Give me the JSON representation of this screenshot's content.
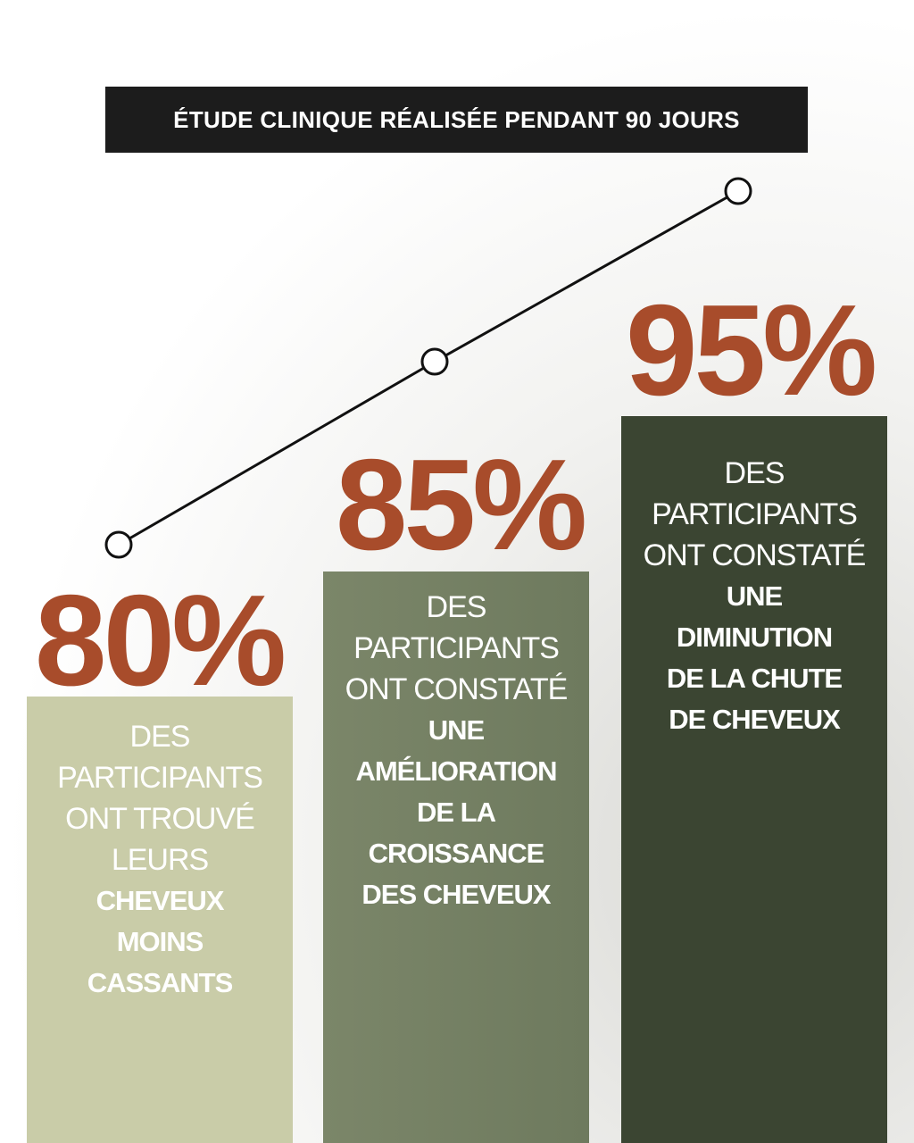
{
  "header": {
    "title": "ÉTUDE CLINIQUE RÉALISÉE PENDANT 90 JOURS"
  },
  "columns": [
    {
      "percent": "80%",
      "light_lines": [
        "DES",
        "PARTICIPANTS",
        "ONT TROUVÉ",
        "LEURS"
      ],
      "bold_lines": [
        "CHEVEUX",
        "MOINS",
        "CASSANTS"
      ]
    },
    {
      "percent": "85%",
      "light_lines": [
        "DES",
        "PARTICIPANTS",
        "ONT CONSTATÉ"
      ],
      "bold_lines": [
        "UNE",
        "AMÉLIORATION",
        "DE LA",
        "CROISSANCE",
        "DES CHEVEUX"
      ]
    },
    {
      "percent": "95%",
      "light_lines": [
        "DES",
        "PARTICIPANTS",
        "ONT CONSTATÉ"
      ],
      "bold_lines": [
        "UNE",
        "DIMINUTION",
        "DE LA CHUTE",
        "DE CHEVEUX"
      ]
    }
  ]
}
